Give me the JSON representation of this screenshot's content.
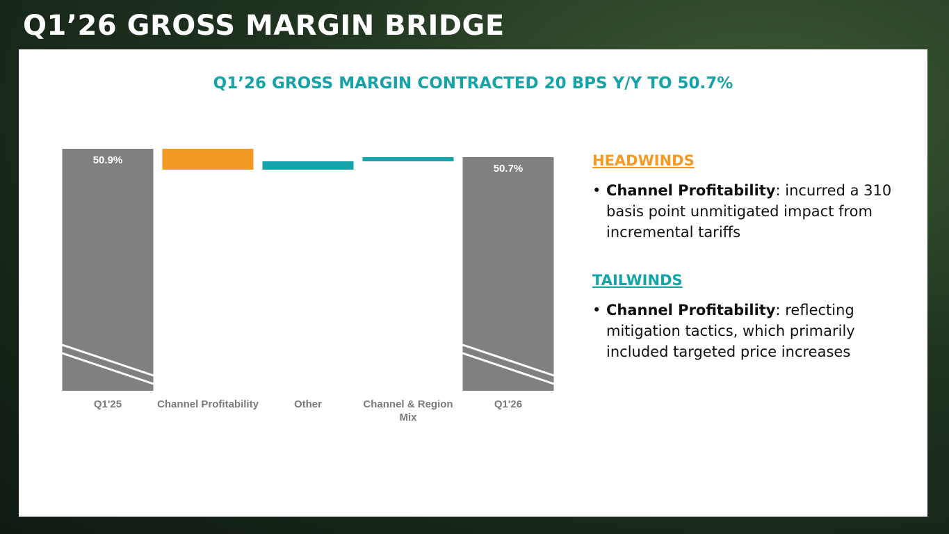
{
  "header": {
    "title": "Q1’26 GROSS MARGIN BRIDGE"
  },
  "chart_data": {
    "type": "waterfall",
    "title": "Q1’26 GROSS MARGIN CONTRACTED 20 BPS Y/Y TO 50.7%",
    "categories": [
      "Q1'25",
      "Channel Profitability",
      "Other",
      "Channel & Region Mix",
      "Q1'26"
    ],
    "values": [
      50.9,
      -0.5,
      0.2,
      0.1,
      50.7
    ],
    "value_labels": [
      "50.9%",
      null,
      null,
      null,
      "50.7%"
    ],
    "colors": [
      "#808083",
      "#f39a25",
      "#16a3a9",
      "#16a3a9",
      "#808083"
    ],
    "ylim": [
      45.1,
      51.0
    ],
    "axis_break": true
  },
  "sections": [
    {
      "heading": "HEADWINDS",
      "color": "#f39a25",
      "bullets": [
        {
          "lead": "Channel Profitability",
          "text": ": incurred a 310 basis point unmitigated impact from incremental tariffs"
        }
      ]
    },
    {
      "heading": "TAILWINDS",
      "color": "#16a3a9",
      "bullets": [
        {
          "lead": "Channel Profitability",
          "text": ": reflecting mitigation tactics, which primarily included targeted price increases"
        }
      ]
    }
  ]
}
